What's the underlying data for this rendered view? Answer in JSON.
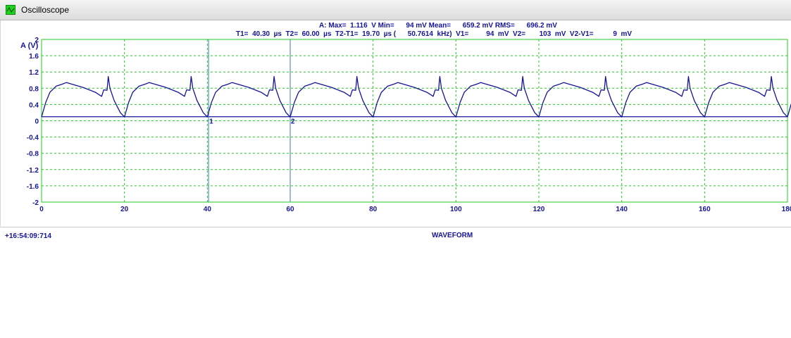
{
  "window": {
    "title": "Oscilloscope"
  },
  "readouts": {
    "line1": "A: Max=  1.116  V Min=      94 mV Mean=      659.2 mV RMS=      696.2 mV",
    "line2": "T1=  40.30  µs  T2=  60.00  µs  T2-T1=  19.70  µs (      50.7614  kHz)  V1=         94  mV  V2=       103  mV  V2-V1=          9  mV"
  },
  "axis_unit": "A (V)",
  "xlabel": "WAVEFORM",
  "timestamp": "+16:54:09:714",
  "cursors": [
    {
      "label": "1",
      "t": 40.3
    },
    {
      "label": "2",
      "t": 60.0
    }
  ],
  "colors": {
    "grid": "#22cc22",
    "trace": "#14149a",
    "cursor": "#5c8ad8",
    "text": "#14149a"
  },
  "chart_data": {
    "type": "line",
    "xlim": [
      0,
      180
    ],
    "ylim": [
      -2,
      2
    ],
    "x_ticks": [
      "0",
      "20",
      "40",
      "60",
      "80",
      "100",
      "120",
      "140",
      "160",
      "180"
    ],
    "y_ticks": [
      "2",
      "1.6",
      "1.2",
      "0.8",
      "0.4",
      "0",
      "-0.4",
      "-0.8",
      "-1.2",
      "-1.6",
      "-2"
    ],
    "grid": true,
    "baseline": 0.1,
    "period": 20,
    "cycle_shape": {
      "t": [
        0,
        1,
        2,
        3.5,
        5,
        6,
        10,
        13,
        14.5,
        15,
        15.8,
        16.1,
        16.5,
        17.5,
        19,
        20
      ],
      "v": [
        0.094,
        0.45,
        0.7,
        0.85,
        0.9,
        0.94,
        0.82,
        0.7,
        0.6,
        0.76,
        0.75,
        1.09,
        0.8,
        0.5,
        0.2,
        0.094
      ]
    },
    "series": [
      {
        "values_desc": ""
      }
    ]
  }
}
